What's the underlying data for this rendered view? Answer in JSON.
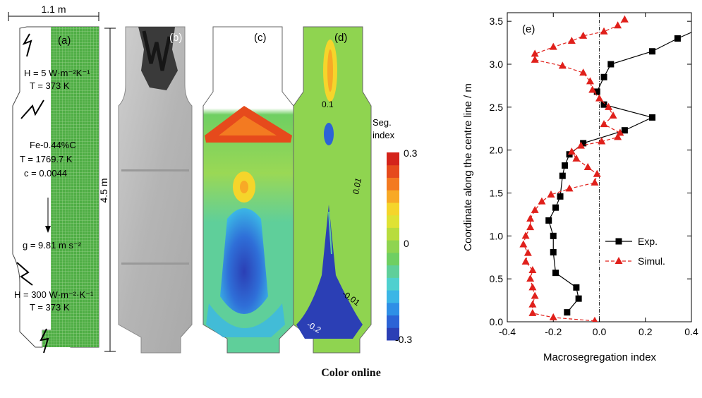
{
  "panel_a": {
    "tag": "(a)",
    "width_label": "1.1 m",
    "height_label": "4.5 m",
    "top_bc": {
      "h": "H = 5 W·m⁻²K⁻¹",
      "t": "T = 373 K"
    },
    "alloy": {
      "name": "Fe-0.44%C",
      "t0": "T = 1769.7 K",
      "c0": "c = 0.0044"
    },
    "gravity": "g = 9.81 m s⁻²",
    "bottom_bc": {
      "h": "H = 300 W·m⁻²·K⁻¹",
      "t": "T = 373 K"
    }
  },
  "panel_b": {
    "tag": "(b)"
  },
  "panel_c": {
    "tag": "(c)"
  },
  "panel_d": {
    "tag": "(d)",
    "contours": [
      "0.1",
      "0.01",
      "-0.01",
      "-0.2"
    ]
  },
  "colorbar": {
    "title1": "Seg.",
    "title2": "index",
    "max": "0.3",
    "mid": "0",
    "min": "-0.3",
    "colors": [
      "#2b3fb5",
      "#2c63d6",
      "#2f8fe6",
      "#3bb6e6",
      "#4fd0cf",
      "#5fcf9a",
      "#6fcf62",
      "#8fd450",
      "#b8dc3e",
      "#dfe234",
      "#f5d52b",
      "#f8a926",
      "#f37a21",
      "#e64a1c",
      "#d4231a"
    ]
  },
  "chart_data": {
    "type": "line",
    "panel_label": "(e)",
    "xlabel": "Macrosegregation index",
    "ylabel": "Coordinate along the centre line / m",
    "xlim": [
      -0.4,
      0.4
    ],
    "ylim": [
      0.0,
      3.6
    ],
    "xticks": [
      "-0.4",
      "-0.2",
      "0.0",
      "0.2",
      "0.4"
    ],
    "yticks": [
      "0.0",
      "0.5",
      "1.0",
      "1.5",
      "2.0",
      "2.5",
      "3.0",
      "3.5"
    ],
    "legend_position": "center-right",
    "series": [
      {
        "name": "Exp.",
        "color": "#000000",
        "marker": "square",
        "line": "solid",
        "points": [
          [
            -0.14,
            0.11
          ],
          [
            -0.09,
            0.27
          ],
          [
            -0.1,
            0.4
          ],
          [
            -0.19,
            0.57
          ],
          [
            -0.2,
            0.81
          ],
          [
            -0.2,
            1.0
          ],
          [
            -0.22,
            1.18
          ],
          [
            -0.19,
            1.33
          ],
          [
            -0.17,
            1.46
          ],
          [
            -0.16,
            1.7
          ],
          [
            -0.15,
            1.82
          ],
          [
            -0.13,
            1.95
          ],
          [
            -0.07,
            2.08
          ],
          [
            0.11,
            2.23
          ],
          [
            0.23,
            2.38
          ],
          [
            0.02,
            2.53
          ],
          [
            -0.01,
            2.68
          ],
          [
            0.02,
            2.85
          ],
          [
            0.05,
            3.0
          ],
          [
            0.23,
            3.15
          ],
          [
            0.34,
            3.3
          ],
          [
            0.45,
            3.43
          ]
        ]
      },
      {
        "name": "Simul.",
        "color": "#e0201b",
        "marker": "triangle",
        "line": "dashed",
        "points": [
          [
            -0.02,
            0.01
          ],
          [
            -0.2,
            0.05
          ],
          [
            -0.29,
            0.1
          ],
          [
            -0.29,
            0.2
          ],
          [
            -0.28,
            0.3
          ],
          [
            -0.29,
            0.4
          ],
          [
            -0.3,
            0.5
          ],
          [
            -0.29,
            0.6
          ],
          [
            -0.32,
            0.7
          ],
          [
            -0.31,
            0.8
          ],
          [
            -0.33,
            0.9
          ],
          [
            -0.32,
            1.0
          ],
          [
            -0.3,
            1.1
          ],
          [
            -0.3,
            1.2
          ],
          [
            -0.28,
            1.3
          ],
          [
            -0.25,
            1.4
          ],
          [
            -0.21,
            1.48
          ],
          [
            -0.13,
            1.55
          ],
          [
            -0.02,
            1.62
          ],
          [
            -0.01,
            1.72
          ],
          [
            -0.05,
            1.8
          ],
          [
            -0.1,
            1.9
          ],
          [
            -0.12,
            1.98
          ],
          [
            -0.08,
            2.05
          ],
          [
            0.01,
            2.1
          ],
          [
            0.08,
            2.15
          ],
          [
            0.09,
            2.2
          ],
          [
            0.02,
            2.3
          ],
          [
            0.06,
            2.4
          ],
          [
            0.04,
            2.5
          ],
          [
            0.0,
            2.6
          ],
          [
            -0.03,
            2.7
          ],
          [
            -0.04,
            2.8
          ],
          [
            -0.07,
            2.9
          ],
          [
            -0.16,
            2.98
          ],
          [
            -0.28,
            3.05
          ],
          [
            -0.28,
            3.12
          ],
          [
            -0.2,
            3.2
          ],
          [
            -0.12,
            3.27
          ],
          [
            -0.07,
            3.33
          ],
          [
            0.02,
            3.38
          ],
          [
            0.08,
            3.45
          ],
          [
            0.11,
            3.52
          ]
        ]
      }
    ]
  },
  "caption": "Color online"
}
